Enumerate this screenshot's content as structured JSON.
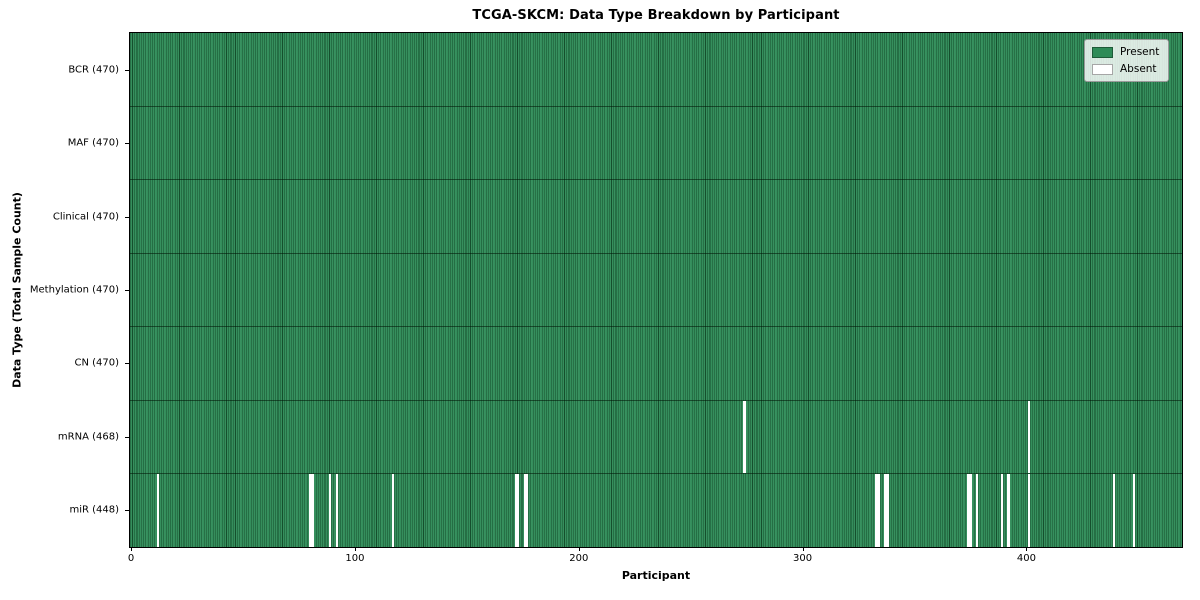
{
  "figure": {
    "title": "TCGA-SKCM: Data Type Breakdown by Participant",
    "xlabel": "Participant",
    "ylabel": "Data Type (Total Sample Count)"
  },
  "legend": {
    "items": [
      {
        "label": "Present",
        "color": "#2e8b57"
      },
      {
        "label": "Absent",
        "color": "#ffffff"
      }
    ]
  },
  "chart_data": {
    "type": "heatmap",
    "title": "TCGA-SKCM: Data Type Breakdown by Participant",
    "xlabel": "Participant",
    "ylabel": "Data Type (Total Sample Count)",
    "legend_position": "upper right",
    "grid": false,
    "n_participants": 470,
    "x_range": [
      0,
      470
    ],
    "x_ticks": [
      0,
      100,
      200,
      300,
      400
    ],
    "present_color": "#2e8b57",
    "absent_color": "#ffffff",
    "rows": [
      {
        "data_type": "BCR",
        "label": "BCR (470)",
        "present_count": 470,
        "absent_participants": []
      },
      {
        "data_type": "MAF",
        "label": "MAF (470)",
        "present_count": 470,
        "absent_participants": []
      },
      {
        "data_type": "Clinical",
        "label": "Clinical (470)",
        "present_count": 470,
        "absent_participants": []
      },
      {
        "data_type": "Methylation",
        "label": "Methylation (470)",
        "present_count": 470,
        "absent_participants": []
      },
      {
        "data_type": "CN",
        "label": "CN (470)",
        "present_count": 470,
        "absent_participants": []
      },
      {
        "data_type": "mRNA",
        "label": "mRNA (468)",
        "present_count": 468,
        "absent_participants": [
          274,
          401
        ]
      },
      {
        "data_type": "miR",
        "label": "miR (448)",
        "present_count": 448,
        "absent_participants": [
          12,
          80,
          81,
          89,
          92,
          117,
          172,
          173,
          176,
          177,
          333,
          334,
          337,
          338,
          374,
          375,
          378,
          389,
          392,
          401,
          439,
          448
        ]
      }
    ]
  }
}
